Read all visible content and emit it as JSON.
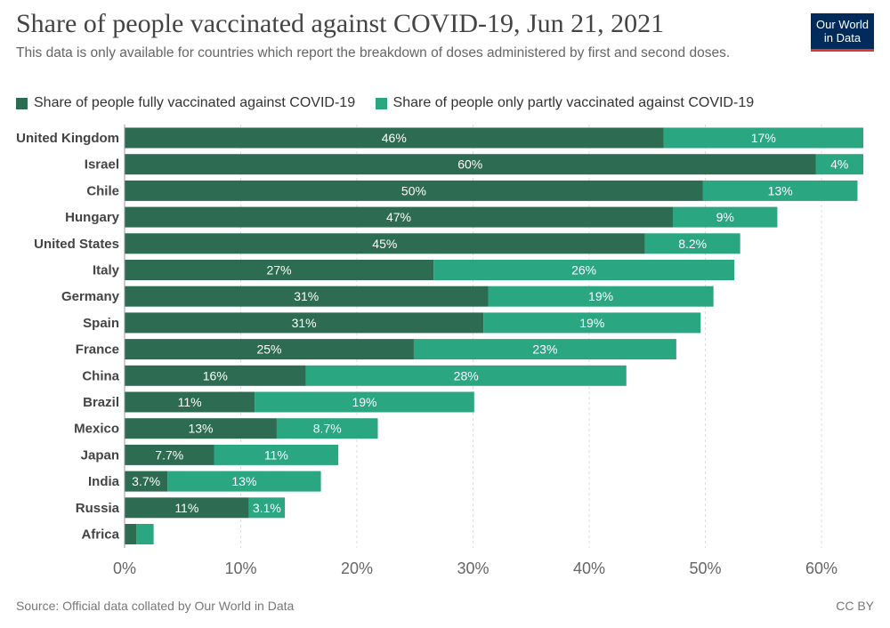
{
  "header": {
    "title": "Share of people vaccinated against COVID-19, Jun 21, 2021",
    "subtitle": "This data is only available for countries which report the breakdown of doses administered by first and second doses.",
    "logo_text": "Our World\nin Data"
  },
  "footer": {
    "source": "Source: Official data collated by Our World in Data",
    "license": "CC BY"
  },
  "colors": {
    "fully": "#2d6c52",
    "partly": "#2aa680",
    "grid": "#dddddd",
    "logo_bg": "#002b5b",
    "logo_accent": "#dd3838"
  },
  "chart_data": {
    "type": "bar",
    "orientation": "horizontal",
    "stacked": true,
    "categories": [
      "United Kingdom",
      "Israel",
      "Chile",
      "Hungary",
      "United States",
      "Italy",
      "Germany",
      "Spain",
      "France",
      "China",
      "Brazil",
      "Mexico",
      "Japan",
      "India",
      "Russia",
      "Africa"
    ],
    "series": [
      {
        "name": "Share of people fully vaccinated against COVID-19",
        "values": [
          46.4,
          59.5,
          49.8,
          47.2,
          44.8,
          26.6,
          31.3,
          30.9,
          24.9,
          15.6,
          11.2,
          13.1,
          7.7,
          3.7,
          10.7,
          1.0
        ],
        "labels": [
          "46%",
          "60%",
          "50%",
          "47%",
          "45%",
          "27%",
          "31%",
          "31%",
          "25%",
          "16%",
          "11%",
          "13%",
          "7.7%",
          "3.7%",
          "11%",
          ""
        ]
      },
      {
        "name": "Share of people only partly vaccinated against COVID-19",
        "values": [
          17.2,
          4.1,
          13.3,
          9.0,
          8.2,
          25.9,
          19.4,
          18.7,
          22.6,
          27.6,
          18.9,
          8.7,
          10.7,
          13.2,
          3.1,
          1.5
        ],
        "labels": [
          "17%",
          "4%",
          "13%",
          "9%",
          "8.2%",
          "26%",
          "19%",
          "19%",
          "23%",
          "28%",
          "19%",
          "8.7%",
          "11%",
          "13%",
          "3.1%",
          ""
        ]
      }
    ],
    "xlim": [
      0,
      63.6
    ],
    "xticks": [
      0,
      10,
      20,
      30,
      40,
      50,
      60
    ],
    "xtick_labels": [
      "0%",
      "10%",
      "20%",
      "30%",
      "40%",
      "50%",
      "60%"
    ],
    "grid": true,
    "legend_position": "top-left"
  }
}
